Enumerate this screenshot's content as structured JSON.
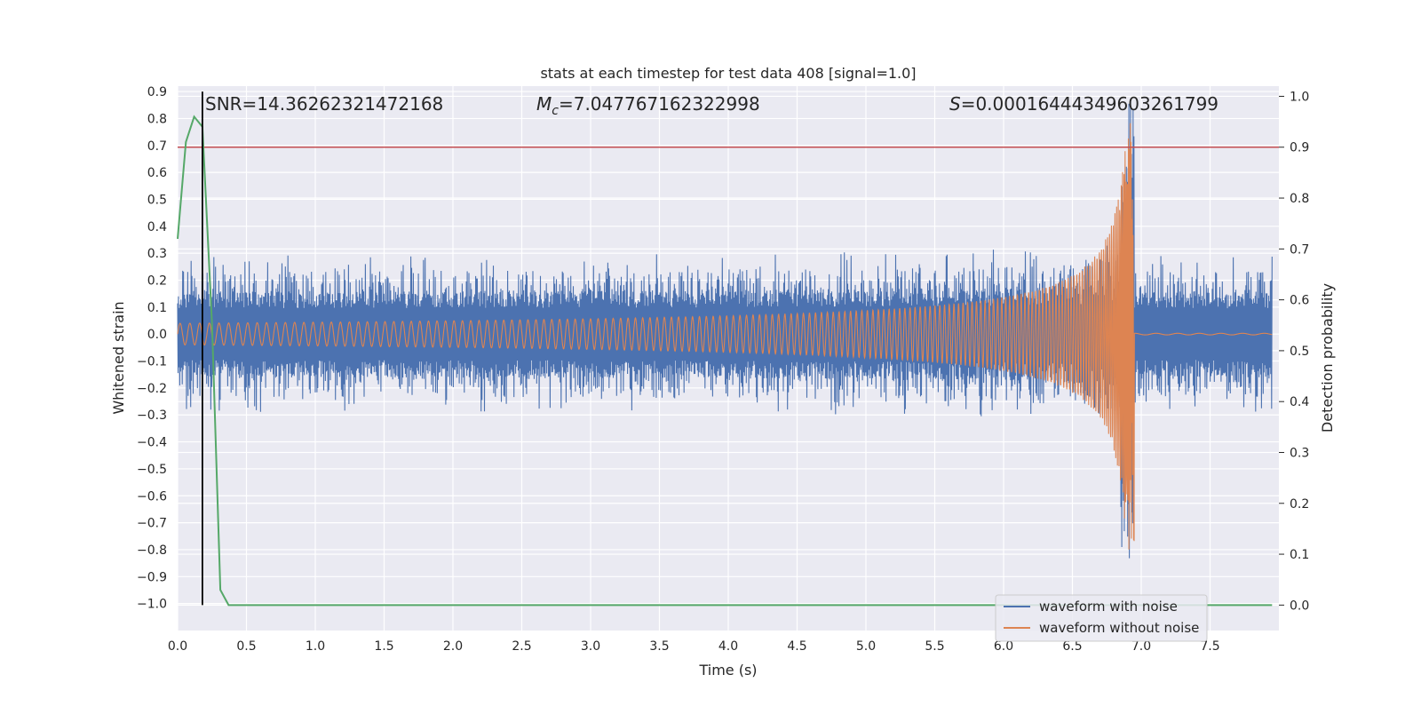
{
  "chart_data": {
    "type": "line",
    "title": "stats at each timestep for test data 408 [signal=1.0]",
    "xlabel": "Time (s)",
    "ylabel_left": "Whitened strain",
    "ylabel_right": "Detection probability",
    "xlim": [
      0.0,
      8.0
    ],
    "ylim_left": [
      -1.1,
      0.92
    ],
    "ylim_right": [
      -0.05,
      1.02
    ],
    "x_ticks": [
      "0.0",
      "0.5",
      "1.0",
      "1.5",
      "2.0",
      "2.5",
      "3.0",
      "3.5",
      "4.0",
      "4.5",
      "5.0",
      "5.5",
      "6.0",
      "6.5",
      "7.0",
      "7.5"
    ],
    "left_ticks": [
      "0.9",
      "0.8",
      "0.7",
      "0.6",
      "0.5",
      "0.4",
      "0.3",
      "0.2",
      "0.1",
      "0.0",
      "−0.1",
      "−0.2",
      "−0.3",
      "−0.4",
      "−0.5",
      "−0.6",
      "−0.7",
      "−0.8",
      "−0.9",
      "−1.0"
    ],
    "right_ticks": [
      "0.0",
      "0.1",
      "0.2",
      "0.3",
      "0.4",
      "0.5",
      "0.6",
      "0.7",
      "0.8",
      "0.9",
      "1.0"
    ],
    "grid": true,
    "legend_position": "lower right",
    "annotations": {
      "snr": "SNR=14.36262321472168",
      "mc": "=7.047767162322998",
      "s": "=0.00016444349603261799"
    },
    "detection_threshold": 0.9,
    "marker_time": 0.18,
    "merger_time": 6.95,
    "series": [
      {
        "name": "waveform with noise",
        "color": "#4c72b0",
        "noise_amplitude": 0.29,
        "peak_amplitude": 0.9
      },
      {
        "name": "waveform without noise",
        "color": "#dd8452",
        "start_amplitude": 0.04,
        "peak_amplitude": 0.8
      }
    ],
    "detection_probability": {
      "color": "#55a868",
      "x": [
        0.0,
        0.06,
        0.12,
        0.18,
        0.25,
        0.31,
        0.37,
        0.5,
        1.0,
        2.0,
        3.0,
        4.0,
        5.0,
        6.0,
        7.0,
        7.95
      ],
      "y": [
        0.72,
        0.91,
        0.96,
        0.94,
        0.55,
        0.03,
        0.0,
        0.0,
        0.0,
        0.0,
        0.0,
        0.0,
        0.0,
        0.0,
        0.0,
        0.0
      ]
    },
    "threshold_color": "#c44e52",
    "background": "#eaeaf2"
  }
}
